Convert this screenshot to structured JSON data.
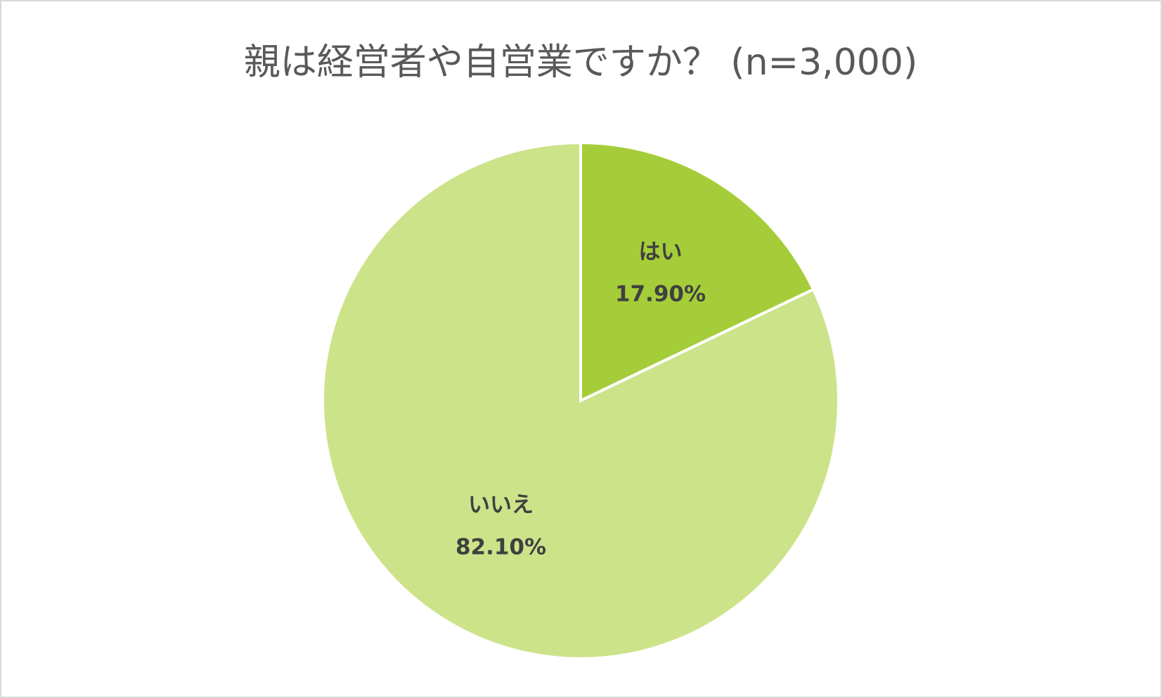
{
  "chart_data": {
    "type": "pie",
    "title": "親は経営者や自営業ですか？ (n=3,000)",
    "categories": [
      "はい",
      "いいえ"
    ],
    "values": [
      17.9,
      82.1
    ],
    "value_labels": [
      "17.90%",
      "82.10%"
    ],
    "colors": [
      "#a5cd39",
      "#cce38a"
    ]
  }
}
